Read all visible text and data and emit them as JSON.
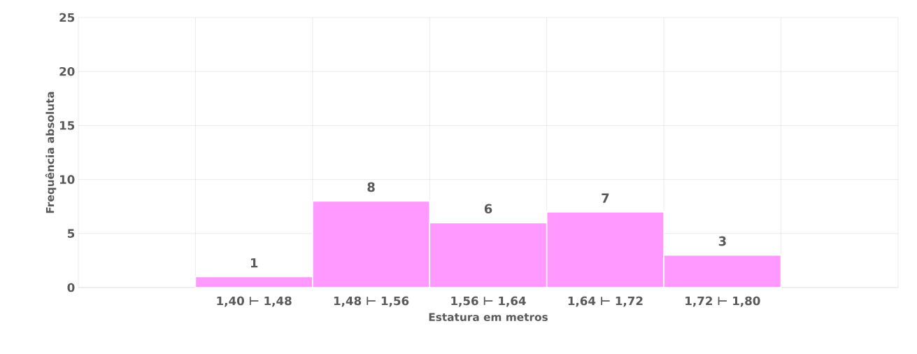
{
  "chart_data": {
    "type": "bar",
    "xlabel": "Estatura em metros",
    "ylabel": "Frequência absoluta",
    "categories": [
      null,
      "1,40 ⊢ 1,48",
      "1,48 ⊢ 1,56",
      "1,56 ⊢ 1,64",
      "1,64 ⊢ 1,72",
      "1,72 ⊢ 1,80",
      null
    ],
    "values": [
      null,
      1,
      8,
      6,
      7,
      3,
      null
    ],
    "color": "#ff99ff",
    "ylim": [
      0,
      25
    ],
    "yticks": [
      0,
      5,
      10,
      15,
      20,
      25
    ],
    "grid": true,
    "data_labels": true
  }
}
